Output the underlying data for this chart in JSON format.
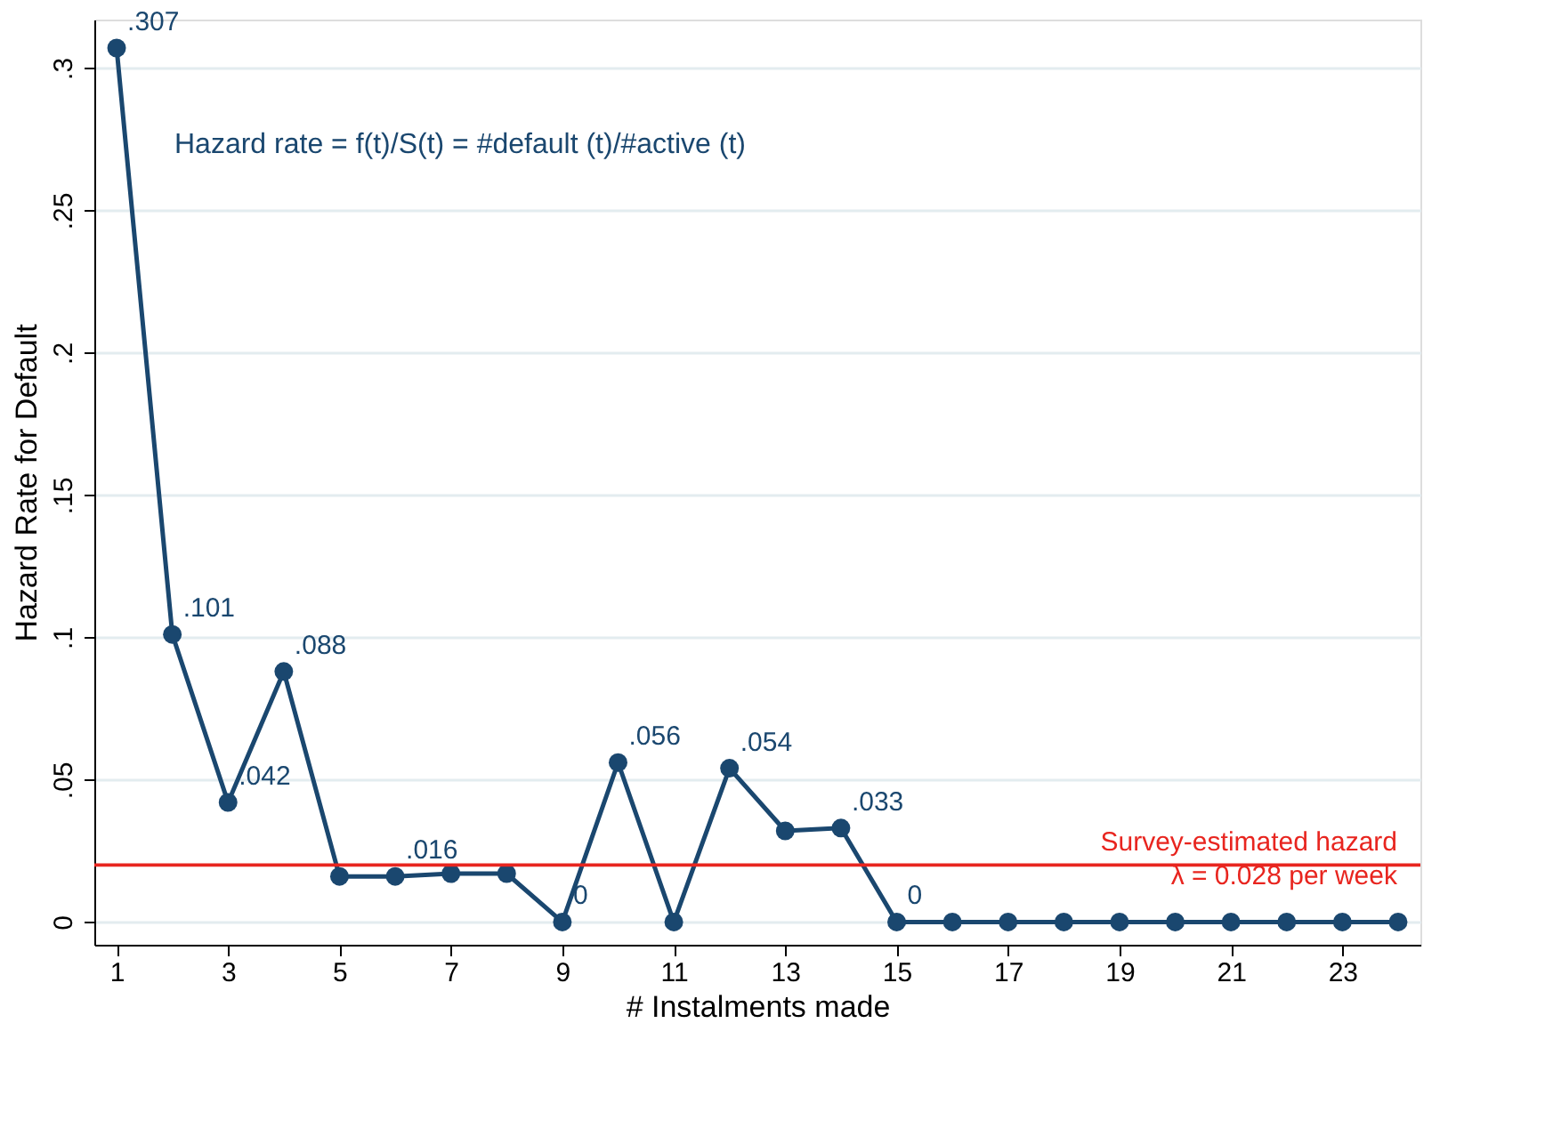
{
  "chart_data": {
    "type": "line",
    "xlabel": "# Instalments made",
    "ylabel": "Hazard Rate for Default",
    "x": [
      1,
      2,
      3,
      4,
      5,
      6,
      7,
      8,
      9,
      10,
      11,
      12,
      13,
      14,
      15,
      16,
      17,
      18,
      19,
      20,
      21,
      22,
      23,
      24
    ],
    "series": [
      {
        "color": "#1a476f",
        "values": [
          0.307,
          0.101,
          0.042,
          0.088,
          0.016,
          0.016,
          0.017,
          0.017,
          0,
          0.056,
          0,
          0.054,
          0.032,
          0.033,
          0,
          0,
          0,
          0,
          0,
          0,
          0,
          0,
          0,
          0
        ],
        "value_labels": [
          ".307",
          ".101",
          ".042",
          ".088",
          null,
          ".016",
          null,
          null,
          "0",
          ".056",
          null,
          ".054",
          null,
          ".033",
          "0",
          null,
          null,
          null,
          null,
          null,
          null,
          null,
          null,
          null
        ]
      }
    ],
    "marker": "circle",
    "line_style": "solid",
    "grid": "y",
    "xlim": [
      0.6,
      24.4
    ],
    "xticks": [
      1,
      3,
      5,
      7,
      9,
      11,
      13,
      15,
      17,
      19,
      21,
      23
    ],
    "ylim": [
      -0.008,
      0.317
    ],
    "yticks": [
      0,
      {
        "value": 0.05,
        "label": ".05"
      },
      {
        "value": 0.1,
        "label": ".1"
      },
      {
        "value": 0.15,
        "label": ".15"
      },
      {
        "value": 0.2,
        "label": ".2"
      },
      {
        "value": 0.25,
        "label": ".25"
      },
      {
        "value": 0.3,
        "label": ".3"
      }
    ],
    "ref_lines": [
      {
        "axis": "y",
        "value": 0.02,
        "color": "#e8251f"
      }
    ],
    "annotations": [
      "Hazard rate = f(t)/S(t) = #default (t)/#active (t)",
      "Survey-estimated hazard\nλ = 0.028 per week"
    ]
  }
}
